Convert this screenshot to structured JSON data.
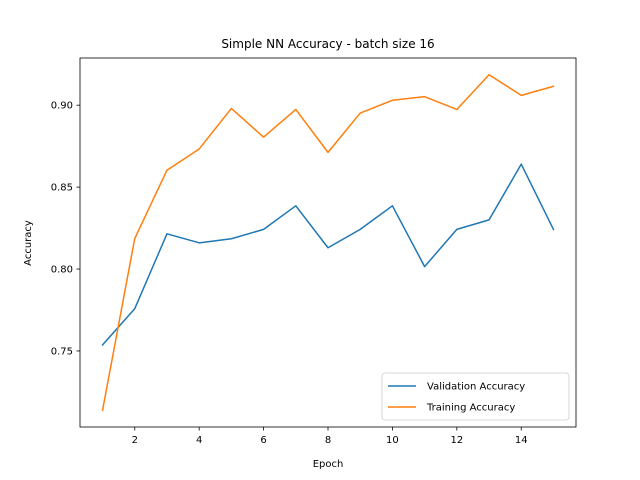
{
  "chart_data": {
    "type": "line",
    "title": "Simple NN Accuracy - batch size 16",
    "xlabel": "Epoch",
    "ylabel": "Accuracy",
    "xlim": [
      0.3,
      15.7
    ],
    "ylim": [
      0.7036,
      0.9288
    ],
    "xticks": [
      2,
      4,
      6,
      8,
      10,
      12,
      14
    ],
    "xtick_labels": [
      "2",
      "4",
      "6",
      "8",
      "10",
      "12",
      "14"
    ],
    "yticks": [
      0.75,
      0.8,
      0.85,
      0.9
    ],
    "ytick_labels": [
      "0.75",
      "0.80",
      "0.85",
      "0.90"
    ],
    "grid": false,
    "legend_position": "lower-right",
    "x": [
      1,
      2,
      3,
      4,
      5,
      6,
      7,
      8,
      9,
      10,
      11,
      12,
      13,
      14,
      15
    ],
    "series": [
      {
        "name": "Validation Accuracy",
        "color": "#1f77b4",
        "values": [
          0.7537,
          0.7758,
          0.8215,
          0.816,
          0.8185,
          0.8242,
          0.8386,
          0.813,
          0.8242,
          0.8386,
          0.8015,
          0.8242,
          0.83,
          0.864,
          0.8242
        ]
      },
      {
        "name": "Training Accuracy",
        "color": "#ff7f0e",
        "values": [
          0.7138,
          0.8186,
          0.8603,
          0.8733,
          0.898,
          0.8805,
          0.8974,
          0.8712,
          0.8952,
          0.903,
          0.9052,
          0.8974,
          0.9186,
          0.906,
          0.9115
        ]
      }
    ]
  }
}
